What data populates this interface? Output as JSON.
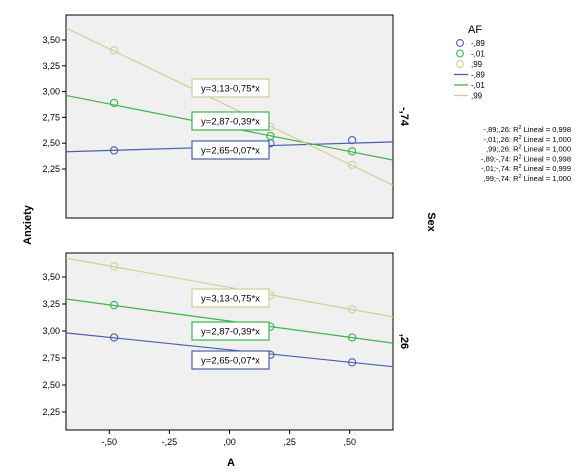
{
  "chart_data": {
    "type": "scatter",
    "xlabel": "A",
    "ylabel": "Anxiety",
    "xlim": [
      -0.68,
      0.68
    ],
    "ylim": [
      2.1,
      3.7
    ],
    "x_ticks": [
      -0.5,
      -0.25,
      0,
      0.25,
      0.5
    ],
    "x_tick_labels": [
      "-,50",
      "-,25",
      ",00",
      ",25",
      ",50"
    ],
    "y_ticks": [
      2.25,
      2.5,
      2.75,
      3.0,
      3.25,
      3.5
    ],
    "y_tick_labels": [
      "2,25",
      "2,50",
      "2,75",
      "3,00",
      "3,25",
      "3,50"
    ],
    "panel_variable": "Sex",
    "legend": {
      "title": "AF",
      "entries": [
        {
          "label": "-,89",
          "kind": "marker",
          "color": "#4a5fae"
        },
        {
          "label": "-,01",
          "kind": "marker",
          "color": "#3cb44b"
        },
        {
          "label": ",99",
          "kind": "marker",
          "color": "#cfcf9a"
        },
        {
          "label": "-,89",
          "kind": "line",
          "color": "#4a5fae"
        },
        {
          "label": "-,01",
          "kind": "line",
          "color": "#3cb44b"
        },
        {
          "label": ",99",
          "kind": "line",
          "color": "#cfcf9a"
        }
      ],
      "fit_labels": [
        {
          "prefix": "-,89;,26: R",
          "suffix": " Lineal = 0,998"
        },
        {
          "prefix": "-,01;,26: R",
          "suffix": " Lineal = 1,000"
        },
        {
          "prefix": ",99;,26: R",
          "suffix": " Lineal = 1,000"
        },
        {
          "prefix": "-,89;-,74: R",
          "suffix": " Lineal = 0,998"
        },
        {
          "prefix": "-,01;-,74: R",
          "suffix": " Lineal = 0,999"
        },
        {
          "prefix": ",99;-,74: R",
          "suffix": " Lineal = 1,000"
        }
      ],
      "superscript": "2"
    },
    "panels": [
      {
        "label": "-,74",
        "equations": [
          {
            "text": "y=3,13-0,75*x",
            "color": "#cfcf9a"
          },
          {
            "text": "y=2,87-0,39*x",
            "color": "#3cb44b"
          },
          {
            "text": "y=2,65-0,07*x",
            "color": "#4a5fae"
          }
        ],
        "series": [
          {
            "name": "-,89",
            "color": "#4a5fae",
            "x": [
              -0.48,
              0.17,
              0.51
            ],
            "y": [
              2.43,
              2.5,
              2.53
            ],
            "fit": [
              2.465,
              0.07
            ]
          },
          {
            "name": "-,01",
            "color": "#3cb44b",
            "x": [
              -0.48,
              0.17,
              0.51
            ],
            "y": [
              2.89,
              2.57,
              2.42
            ],
            "fit": [
              2.65,
              -0.46
            ]
          },
          {
            "name": ",99",
            "color": "#cfcf9a",
            "x": [
              -0.48,
              0.17,
              0.51
            ],
            "y": [
              3.4,
              2.66,
              2.29
            ],
            "fit": [
              2.855,
              -1.12
            ]
          }
        ]
      },
      {
        "label": ",26",
        "equations": [
          {
            "text": "y=3,13-0,75*x",
            "color": "#cfcf9a"
          },
          {
            "text": "y=2,87-0,39*x",
            "color": "#3cb44b"
          },
          {
            "text": "y=2,65-0,07*x",
            "color": "#4a5fae"
          }
        ],
        "series": [
          {
            "name": "-,89",
            "color": "#4a5fae",
            "x": [
              -0.48,
              0.17,
              0.51
            ],
            "y": [
              2.94,
              2.78,
              2.71
            ],
            "fit": [
              2.826,
              -0.23
            ]
          },
          {
            "name": "-,01",
            "color": "#3cb44b",
            "x": [
              -0.48,
              0.17,
              0.51
            ],
            "y": [
              3.24,
              3.04,
              2.94
            ],
            "fit": [
              3.092,
              -0.3
            ]
          },
          {
            "name": ",99",
            "color": "#cfcf9a",
            "x": [
              -0.48,
              0.17,
              0.51
            ],
            "y": [
              3.6,
              3.33,
              3.2
            ],
            "fit": [
              3.403,
              -0.4
            ]
          }
        ]
      }
    ]
  }
}
